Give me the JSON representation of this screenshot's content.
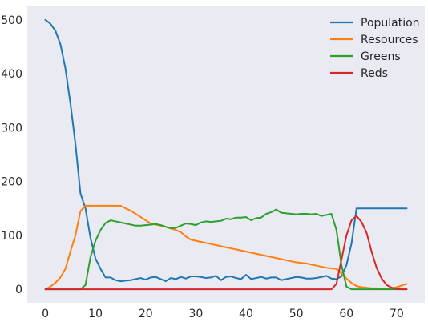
{
  "chart_data": {
    "type": "line",
    "title": "",
    "xlabel": "",
    "ylabel": "",
    "xlim": [
      -3.6,
      75.6
    ],
    "ylim": [
      -25,
      525
    ],
    "xticks": [
      0,
      10,
      20,
      30,
      40,
      50,
      60,
      70
    ],
    "yticks": [
      0,
      100,
      200,
      300,
      400,
      500
    ],
    "grid": false,
    "legend": "top-right",
    "background": "#eaeaf2",
    "series": [
      {
        "name": "Population",
        "color": "#1f77b4",
        "x": [
          0,
          1,
          2,
          3,
          4,
          5,
          6,
          7,
          8,
          9,
          10,
          11,
          12,
          13,
          14,
          15,
          16,
          17,
          18,
          19,
          20,
          21,
          22,
          23,
          24,
          25,
          26,
          27,
          28,
          29,
          30,
          31,
          32,
          33,
          34,
          35,
          36,
          37,
          38,
          39,
          40,
          41,
          42,
          43,
          44,
          45,
          46,
          47,
          48,
          49,
          50,
          51,
          52,
          53,
          54,
          55,
          56,
          57,
          58,
          59,
          60,
          61,
          62,
          63,
          64,
          65,
          66,
          67,
          68,
          69,
          70,
          71,
          72
        ],
        "values": [
          500,
          493,
          480,
          455,
          410,
          345,
          270,
          178,
          150,
          95,
          57,
          38,
          22,
          22,
          17,
          15,
          16,
          17,
          19,
          21,
          18,
          22,
          23,
          19,
          15,
          21,
          19,
          23,
          20,
          24,
          24,
          23,
          21,
          22,
          25,
          17,
          23,
          24,
          21,
          19,
          27,
          19,
          21,
          23,
          20,
          22,
          22,
          17,
          19,
          21,
          23,
          22,
          20,
          20,
          21,
          23,
          25,
          20,
          19,
          24,
          45,
          85,
          150,
          150,
          150,
          150,
          150,
          150,
          150,
          150,
          150,
          150,
          150
        ]
      },
      {
        "name": "Resources",
        "color": "#ff7f0e",
        "x": [
          0,
          1,
          2,
          3,
          4,
          5,
          6,
          7,
          8,
          9,
          10,
          11,
          12,
          13,
          14,
          15,
          16,
          17,
          18,
          19,
          20,
          21,
          22,
          23,
          24,
          25,
          26,
          27,
          28,
          29,
          30,
          31,
          32,
          33,
          34,
          35,
          36,
          37,
          38,
          39,
          40,
          41,
          42,
          43,
          44,
          45,
          46,
          47,
          48,
          49,
          50,
          51,
          52,
          53,
          54,
          55,
          56,
          57,
          58,
          59,
          60,
          61,
          62,
          63,
          64,
          65,
          66,
          67,
          68,
          69,
          70,
          71,
          72
        ],
        "values": [
          0,
          5,
          12,
          22,
          38,
          70,
          100,
          145,
          155,
          155,
          155,
          155,
          155,
          155,
          155,
          155,
          150,
          146,
          140,
          134,
          128,
          122,
          120,
          118,
          116,
          113,
          110,
          106,
          98,
          92,
          90,
          88,
          86,
          84,
          82,
          80,
          78,
          76,
          74,
          72,
          70,
          68,
          66,
          64,
          62,
          60,
          58,
          56,
          54,
          52,
          50,
          49,
          48,
          46,
          44,
          42,
          40,
          39,
          38,
          30,
          20,
          12,
          6,
          4,
          3,
          2,
          2,
          1,
          1,
          2,
          4,
          7,
          10
        ]
      },
      {
        "name": "Greens",
        "color": "#2ca02c",
        "x": [
          0,
          1,
          2,
          3,
          4,
          5,
          6,
          7,
          8,
          9,
          10,
          11,
          12,
          13,
          14,
          15,
          16,
          17,
          18,
          19,
          20,
          21,
          22,
          23,
          24,
          25,
          26,
          27,
          28,
          29,
          30,
          31,
          32,
          33,
          34,
          35,
          36,
          37,
          38,
          39,
          40,
          41,
          42,
          43,
          44,
          45,
          46,
          47,
          48,
          49,
          50,
          51,
          52,
          53,
          54,
          55,
          56,
          57,
          58,
          59,
          60,
          61,
          62,
          63,
          64,
          65,
          66,
          67,
          68,
          69,
          70,
          71,
          72
        ],
        "values": [
          0,
          0,
          0,
          0,
          0,
          0,
          0,
          0,
          8,
          60,
          90,
          110,
          123,
          128,
          126,
          124,
          122,
          120,
          118,
          118,
          119,
          120,
          121,
          119,
          116,
          113,
          114,
          118,
          122,
          121,
          119,
          124,
          126,
          125,
          126,
          127,
          131,
          130,
          133,
          133,
          134,
          128,
          132,
          133,
          140,
          143,
          148,
          142,
          141,
          140,
          139,
          140,
          140,
          139,
          140,
          136,
          138,
          140,
          110,
          45,
          5,
          0,
          0,
          0,
          0,
          0,
          0,
          0,
          0,
          0,
          0,
          0,
          0
        ]
      },
      {
        "name": "Reds",
        "color": "#d62728",
        "x": [
          0,
          1,
          2,
          3,
          4,
          5,
          6,
          7,
          8,
          9,
          10,
          11,
          12,
          13,
          14,
          15,
          16,
          17,
          18,
          19,
          20,
          21,
          22,
          23,
          24,
          25,
          26,
          27,
          28,
          29,
          30,
          31,
          32,
          33,
          34,
          35,
          36,
          37,
          38,
          39,
          40,
          41,
          42,
          43,
          44,
          45,
          46,
          47,
          48,
          49,
          50,
          51,
          52,
          53,
          54,
          55,
          56,
          57,
          58,
          59,
          60,
          61,
          62,
          63,
          64,
          65,
          66,
          67,
          68,
          69,
          70,
          71,
          72
        ],
        "values": [
          0,
          0,
          0,
          0,
          0,
          0,
          0,
          0,
          0,
          0,
          0,
          0,
          0,
          0,
          0,
          0,
          0,
          0,
          0,
          0,
          0,
          0,
          0,
          0,
          0,
          0,
          0,
          0,
          0,
          0,
          0,
          0,
          0,
          0,
          0,
          0,
          0,
          0,
          0,
          0,
          0,
          0,
          0,
          0,
          0,
          0,
          0,
          0,
          0,
          0,
          0,
          0,
          0,
          0,
          0,
          0,
          0,
          0,
          10,
          55,
          100,
          128,
          136,
          125,
          105,
          70,
          40,
          20,
          8,
          3,
          1,
          0,
          0
        ]
      }
    ]
  }
}
